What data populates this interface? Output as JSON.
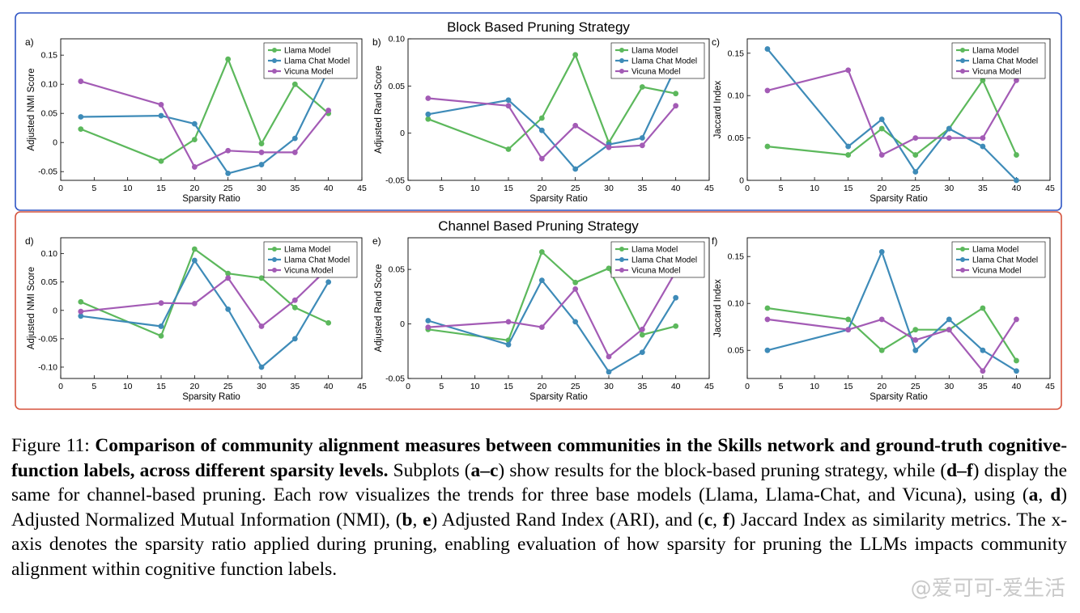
{
  "panels": [
    {
      "title": "Block Based Pruning Strategy",
      "border": "#2f55c4"
    },
    {
      "title": "Channel Based Pruning Strategy",
      "border": "#d5533d"
    }
  ],
  "series_style": [
    {
      "name": "Llama Model",
      "color": "#5cb85c"
    },
    {
      "name": "Llama Chat Model",
      "color": "#3e8bb8"
    },
    {
      "name": "Vicuna Model",
      "color": "#a35bb5"
    }
  ],
  "chart_data": [
    {
      "id": "a",
      "type": "line",
      "letter": "a)",
      "xlabel": "Sparsity Ratio",
      "ylabel": "Adjusted NMI Score",
      "xlim": [
        0,
        45
      ],
      "xticks": [
        0,
        5,
        10,
        15,
        20,
        25,
        30,
        35,
        40,
        45
      ],
      "ylim": [
        -0.065,
        0.178
      ],
      "yticks": [
        -0.05,
        0,
        0.05,
        0.1,
        0.15
      ],
      "ytick_labels": [
        "-0.05",
        "0",
        "0.05",
        "0.10",
        "0.15"
      ],
      "x": [
        3,
        15,
        20,
        25,
        30,
        35,
        40
      ],
      "legend": "top-right",
      "series": [
        {
          "name": "Llama Model",
          "values": [
            0.023,
            -0.032,
            0.005,
            0.143,
            -0.002,
            0.1,
            0.05
          ]
        },
        {
          "name": "Llama Chat Model",
          "values": [
            0.044,
            0.046,
            0.032,
            -0.053,
            -0.038,
            0.007,
            0.125
          ]
        },
        {
          "name": "Vicuna Model",
          "values": [
            0.105,
            0.065,
            -0.042,
            -0.014,
            -0.017,
            -0.017,
            0.055
          ]
        }
      ]
    },
    {
      "id": "b",
      "type": "line",
      "letter": "b)",
      "xlabel": "Sparsity Ratio",
      "ylabel": "Adjusted Rand Score",
      "xlim": [
        0,
        45
      ],
      "xticks": [
        0,
        5,
        10,
        15,
        20,
        25,
        30,
        35,
        40,
        45
      ],
      "ylim": [
        -0.05,
        0.1
      ],
      "yticks": [
        -0.05,
        0,
        0.05,
        0.1
      ],
      "ytick_labels": [
        "-0.05",
        "0",
        "0.05",
        "0.10"
      ],
      "x": [
        3,
        15,
        20,
        25,
        30,
        35,
        40
      ],
      "legend": "top-right",
      "series": [
        {
          "name": "Llama Model",
          "values": [
            0.015,
            -0.017,
            0.016,
            0.083,
            -0.01,
            0.049,
            0.042
          ]
        },
        {
          "name": "Llama Chat Model",
          "values": [
            0.02,
            0.035,
            0.003,
            -0.038,
            -0.012,
            -0.005,
            0.07
          ]
        },
        {
          "name": "Vicuna Model",
          "values": [
            0.037,
            0.029,
            -0.027,
            0.008,
            -0.015,
            -0.013,
            0.029
          ]
        }
      ]
    },
    {
      "id": "c",
      "type": "line",
      "letter": "c)",
      "xlabel": "Sparsity Ratio",
      "ylabel": "Jaccard Index",
      "xlim": [
        0,
        45
      ],
      "xticks": [
        0,
        5,
        10,
        15,
        20,
        25,
        30,
        35,
        40,
        45
      ],
      "ylim": [
        0,
        0.167
      ],
      "yticks": [
        0,
        0.05,
        0.1,
        0.15
      ],
      "ytick_labels": [
        "0",
        "0.05",
        "0.10",
        "0.15"
      ],
      "x": [
        3,
        15,
        20,
        25,
        30,
        35,
        40
      ],
      "legend": "top-right",
      "series": [
        {
          "name": "Llama Model",
          "values": [
            0.04,
            0.03,
            0.061,
            0.03,
            0.061,
            0.118,
            0.03
          ]
        },
        {
          "name": "Llama Chat Model",
          "values": [
            0.155,
            0.04,
            0.072,
            0.01,
            0.061,
            0.04,
            0.0
          ]
        },
        {
          "name": "Vicuna Model",
          "values": [
            0.106,
            0.13,
            0.03,
            0.05,
            0.05,
            0.05,
            0.118
          ]
        }
      ]
    },
    {
      "id": "d",
      "type": "line",
      "letter": "d)",
      "xlabel": "Sparsity Ratio",
      "ylabel": "Adjusted NMI Score",
      "xlim": [
        0,
        45
      ],
      "xticks": [
        0,
        5,
        10,
        15,
        20,
        25,
        30,
        35,
        40,
        45
      ],
      "ylim": [
        -0.12,
        0.128
      ],
      "yticks": [
        -0.1,
        -0.05,
        0,
        0.05,
        0.1
      ],
      "ytick_labels": [
        "-0.10",
        "-0.05",
        "0",
        "0.05",
        "0.10"
      ],
      "x": [
        3,
        15,
        20,
        25,
        30,
        35,
        40
      ],
      "legend": "top-right",
      "series": [
        {
          "name": "Llama Model",
          "values": [
            0.015,
            -0.045,
            0.108,
            0.065,
            0.057,
            0.005,
            -0.022
          ]
        },
        {
          "name": "Llama Chat Model",
          "values": [
            -0.01,
            -0.028,
            0.088,
            0.002,
            -0.1,
            -0.05,
            0.05
          ]
        },
        {
          "name": "Vicuna Model",
          "values": [
            -0.002,
            0.013,
            0.012,
            0.057,
            -0.028,
            0.018,
            0.075
          ]
        }
      ]
    },
    {
      "id": "e",
      "type": "line",
      "letter": "e)",
      "xlabel": "Sparsity Ratio",
      "ylabel": "Adjusted Rand Score",
      "xlim": [
        0,
        45
      ],
      "xticks": [
        0,
        5,
        10,
        15,
        20,
        25,
        30,
        35,
        40,
        45
      ],
      "ylim": [
        -0.05,
        0.079
      ],
      "yticks": [
        -0.05,
        0,
        0.05
      ],
      "ytick_labels": [
        "-0.05",
        "0",
        "0.05"
      ],
      "x": [
        3,
        15,
        20,
        25,
        30,
        35,
        40
      ],
      "legend": "top-right",
      "series": [
        {
          "name": "Llama Model",
          "values": [
            -0.005,
            -0.015,
            0.066,
            0.038,
            0.051,
            -0.01,
            -0.002
          ]
        },
        {
          "name": "Llama Chat Model",
          "values": [
            0.003,
            -0.019,
            0.04,
            0.002,
            -0.044,
            -0.026,
            0.024
          ]
        },
        {
          "name": "Vicuna Model",
          "values": [
            -0.003,
            0.002,
            -0.003,
            0.032,
            -0.03,
            -0.005,
            0.048
          ]
        }
      ]
    },
    {
      "id": "f",
      "type": "line",
      "letter": "f)",
      "xlabel": "Sparsity Ratio",
      "ylabel": "Jaccard Index",
      "xlim": [
        0,
        45
      ],
      "xticks": [
        0,
        5,
        10,
        15,
        20,
        25,
        30,
        35,
        40,
        45
      ],
      "ylim": [
        0.02,
        0.17
      ],
      "yticks": [
        0.05,
        0.1,
        0.15
      ],
      "ytick_labels": [
        "0.05",
        "0.10",
        "0.15"
      ],
      "x": [
        3,
        15,
        20,
        25,
        30,
        35,
        40
      ],
      "legend": "top-right",
      "series": [
        {
          "name": "Llama Model",
          "values": [
            0.095,
            0.083,
            0.05,
            0.072,
            0.072,
            0.095,
            0.039
          ]
        },
        {
          "name": "Llama Chat Model",
          "values": [
            0.05,
            0.072,
            0.155,
            0.05,
            0.083,
            0.05,
            0.028
          ]
        },
        {
          "name": "Vicuna Model",
          "values": [
            0.083,
            0.072,
            0.083,
            0.061,
            0.072,
            0.028,
            0.083
          ]
        }
      ]
    }
  ],
  "caption": {
    "label": "Figure 11: ",
    "bold": "Comparison of community alignment measures between communities in the Skills network and ground-truth cognitive-function labels, across different sparsity levels.",
    "p1": " Subplots (",
    "b1": "a–c",
    "p2": ") show results for the block-based pruning strategy, while (",
    "b2": "d–f",
    "p3": ") display the same for channel-based pruning. Each row visualizes the trends for three base models (Llama, Llama-Chat, and Vicuna), using (",
    "b3": "a",
    "p4": ", ",
    "b4": "d",
    "p5": ") Adjusted Normalized Mutual Information (NMI), (",
    "b5": "b",
    "p6": ", ",
    "b6": "e",
    "p7": ") Adjusted Rand Index (ARI), and (",
    "b7": "c",
    "p8": ", ",
    "b8": "f",
    "p9": ") Jaccard Index as similarity metrics. The x-axis denotes the sparsity ratio applied during pruning, enabling evaluation of how sparsity for pruning the LLMs impacts community alignment within cognitive function labels."
  },
  "watermark": "@爱可可-爱生活"
}
